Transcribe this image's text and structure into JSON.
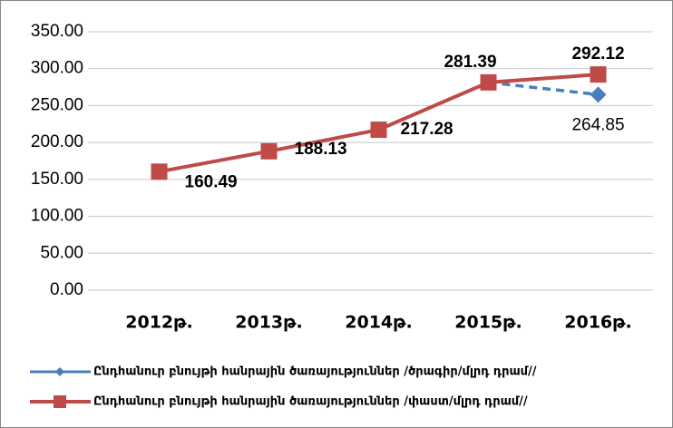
{
  "chart_data": {
    "type": "line",
    "categories": [
      "2012թ.",
      "2013թ.",
      "2014թ.",
      "2015թ.",
      "2016թ."
    ],
    "series": [
      {
        "name": "Ընդհանուր բնույթի հանրային ծառայություններ /ծրագիր/մլրդ դրամ//",
        "color": "#4a7ebb",
        "values": [
          null,
          null,
          null,
          281.39,
          264.85
        ],
        "value_labels": [
          null,
          null,
          null,
          null,
          "264.85"
        ]
      },
      {
        "name": "Ընդհանուր բնույթի հանրային ծառայություններ /փաստ/մլրդ դրամ//",
        "color": "#be4b48",
        "values": [
          160.49,
          188.13,
          217.28,
          281.39,
          292.12
        ],
        "value_labels": [
          "160.49",
          "188.13",
          "217.28",
          "281.39",
          "292.12"
        ]
      }
    ],
    "ylim": [
      0,
      350
    ],
    "yticks": [
      {
        "value": 0,
        "label": "0.00"
      },
      {
        "value": 50,
        "label": "50.00"
      },
      {
        "value": 100,
        "label": "100.00"
      },
      {
        "value": 150,
        "label": "150.00"
      },
      {
        "value": 200,
        "label": "200.00"
      },
      {
        "value": 250,
        "label": "250.00"
      },
      {
        "value": 300,
        "label": "300.00"
      },
      {
        "value": 350,
        "label": "350.00"
      }
    ],
    "grid": true,
    "legend": "bottom"
  }
}
